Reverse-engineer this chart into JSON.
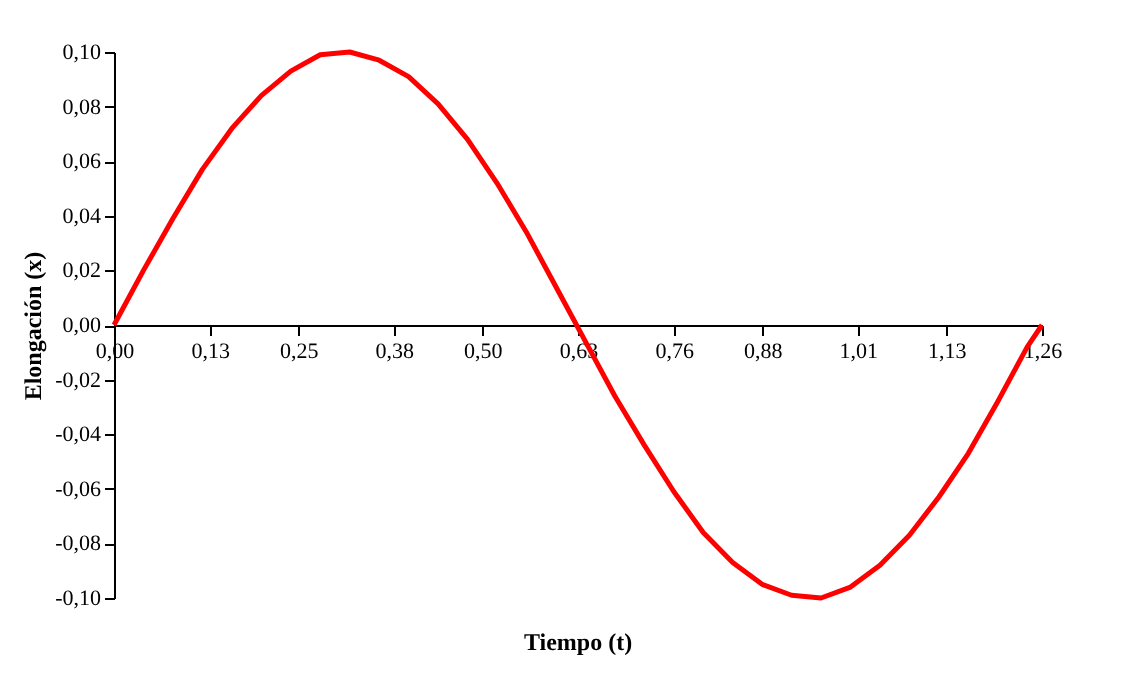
{
  "chart_data": {
    "type": "line",
    "xlabel": "Tiempo (t)",
    "ylabel": "Elongación (x)",
    "x": [
      0,
      0.04,
      0.08,
      0.12,
      0.16,
      0.2,
      0.24,
      0.28,
      0.32,
      0.36,
      0.4,
      0.44,
      0.48,
      0.52,
      0.56,
      0.6,
      0.64,
      0.68,
      0.72,
      0.76,
      0.8,
      0.84,
      0.88,
      0.92,
      0.96,
      1.0,
      1.04,
      1.08,
      1.12,
      1.16,
      1.2,
      1.24,
      1.26
    ],
    "series": [
      {
        "color": "#ff0000",
        "values": [
          0,
          0.02,
          0.039,
          0.057,
          0.072,
          0.084,
          0.093,
          0.099,
          0.1,
          0.097,
          0.091,
          0.081,
          0.068,
          0.052,
          0.034,
          0.014,
          -0.006,
          -0.026,
          -0.044,
          -0.061,
          -0.076,
          -0.087,
          -0.095,
          -0.099,
          -0.1,
          -0.096,
          -0.088,
          -0.077,
          -0.063,
          -0.047,
          -0.028,
          -0.008,
          0
        ]
      }
    ],
    "xlim": [
      0,
      1.26
    ],
    "xticks": [
      {
        "value": 0,
        "label": "0,00"
      },
      {
        "value": 0.13,
        "label": "0,13"
      },
      {
        "value": 0.25,
        "label": "0,25"
      },
      {
        "value": 0.38,
        "label": "0,38"
      },
      {
        "value": 0.5,
        "label": "0,50"
      },
      {
        "value": 0.63,
        "label": "0,63"
      },
      {
        "value": 0.76,
        "label": "0,76"
      },
      {
        "value": 0.88,
        "label": "0,88"
      },
      {
        "value": 1.01,
        "label": "1,01"
      },
      {
        "value": 1.13,
        "label": "1,13"
      },
      {
        "value": 1.26,
        "label": "1,26"
      }
    ],
    "ylim": [
      -0.1,
      0.1
    ],
    "yticks": [
      {
        "value": -0.1,
        "label": "-0,10"
      },
      {
        "value": -0.08,
        "label": "-0,08"
      },
      {
        "value": -0.06,
        "label": "-0,06"
      },
      {
        "value": -0.04,
        "label": "-0,04"
      },
      {
        "value": -0.02,
        "label": "-0,02"
      },
      {
        "value": 0,
        "label": "0,00"
      },
      {
        "value": 0.02,
        "label": "0,02"
      },
      {
        "value": 0.04,
        "label": "0,04"
      },
      {
        "value": 0.06,
        "label": "0,06"
      },
      {
        "value": 0.08,
        "label": "0,08"
      },
      {
        "value": 0.1,
        "label": "0,10"
      }
    ],
    "grid": false,
    "legend": false,
    "marker": "none",
    "line_style": "solid"
  }
}
